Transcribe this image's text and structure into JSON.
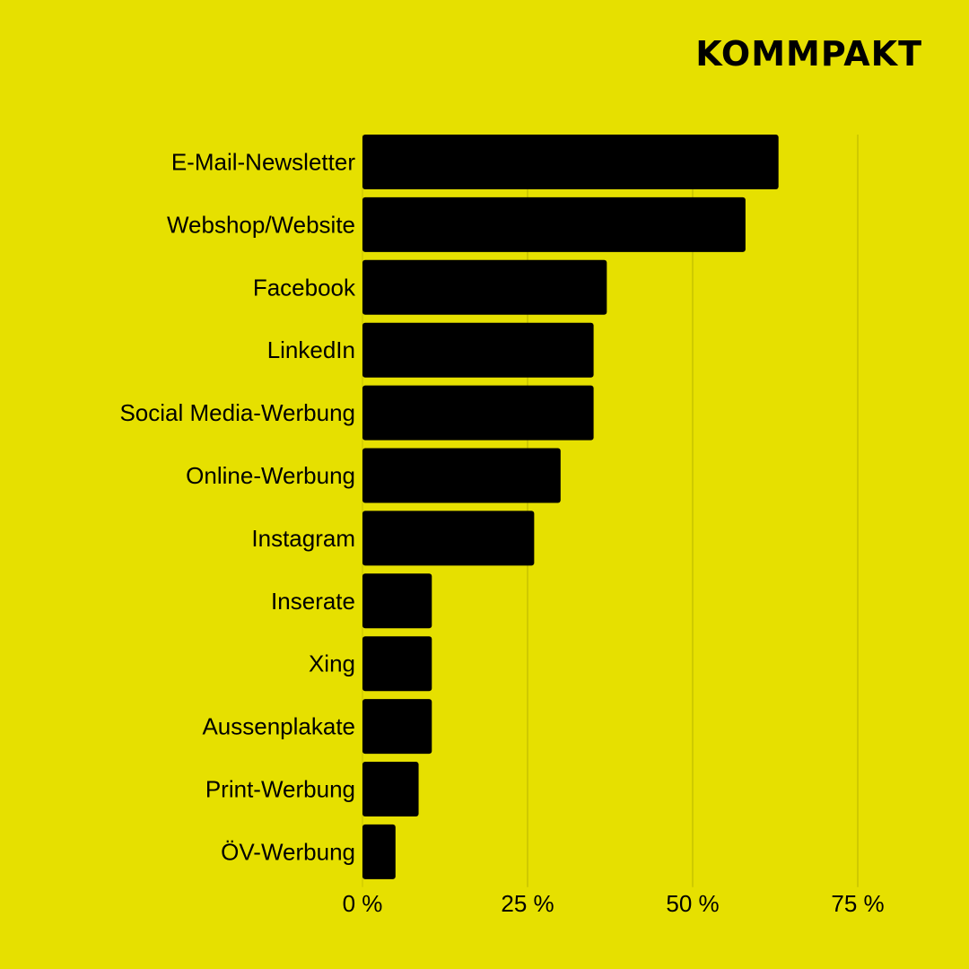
{
  "brand": {
    "logo_text": "KOMMPAKT"
  },
  "colors": {
    "background": "#e6e000",
    "bar": "#000000",
    "gridline": "#b8b300"
  },
  "chart_data": {
    "type": "bar",
    "orientation": "horizontal",
    "categories": [
      "E-Mail-Newsletter",
      "Webshop/Website",
      "Facebook",
      "LinkedIn",
      "Social Media-Werbung",
      "Online-Werbung",
      "Instagram",
      "Inserate",
      "Xing",
      "Aussenplakate",
      "Print-Werbung",
      "ÖV-Werbung"
    ],
    "values": [
      63,
      58,
      37,
      35,
      35,
      30,
      26,
      10.5,
      10.5,
      10.5,
      8.5,
      5
    ],
    "xlim": [
      0,
      75
    ],
    "xticks": [
      0,
      25,
      50,
      75
    ],
    "xtick_labels": [
      "0 %",
      "25 %",
      "50 %",
      "75 %"
    ],
    "grid": true,
    "title": "",
    "xlabel": "",
    "ylabel": ""
  }
}
